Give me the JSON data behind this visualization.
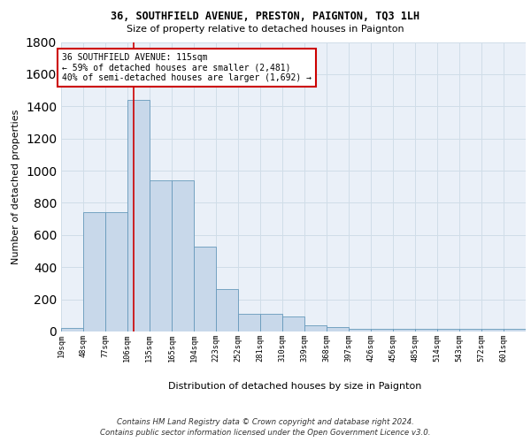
{
  "title1": "36, SOUTHFIELD AVENUE, PRESTON, PAIGNTON, TQ3 1LH",
  "title2": "Size of property relative to detached houses in Paignton",
  "xlabel": "Distribution of detached houses by size in Paignton",
  "ylabel": "Number of detached properties",
  "bin_labels": [
    "19sqm",
    "48sqm",
    "77sqm",
    "106sqm",
    "135sqm",
    "165sqm",
    "194sqm",
    "223sqm",
    "252sqm",
    "281sqm",
    "310sqm",
    "339sqm",
    "368sqm",
    "397sqm",
    "426sqm",
    "456sqm",
    "485sqm",
    "514sqm",
    "543sqm",
    "572sqm",
    "601sqm"
  ],
  "bin_edges": [
    19,
    48,
    77,
    106,
    135,
    165,
    194,
    223,
    252,
    281,
    310,
    339,
    368,
    397,
    426,
    456,
    485,
    514,
    543,
    572,
    601
  ],
  "bar_heights": [
    20,
    740,
    740,
    1440,
    940,
    940,
    530,
    265,
    110,
    110,
    95,
    40,
    25,
    15,
    15,
    15,
    15,
    15,
    15,
    15,
    15
  ],
  "bar_color": "#c8d8ea",
  "bar_edgecolor": "#6699bb",
  "property_size": 115,
  "vline_color": "#cc0000",
  "annotation_line1": "36 SOUTHFIELD AVENUE: 115sqm",
  "annotation_line2": "← 59% of detached houses are smaller (2,481)",
  "annotation_line3": "40% of semi-detached houses are larger (1,692) →",
  "annotation_box_edgecolor": "#cc0000",
  "ylim": [
    0,
    1800
  ],
  "yticks": [
    0,
    200,
    400,
    600,
    800,
    1000,
    1200,
    1400,
    1600,
    1800
  ],
  "grid_color": "#d0dde8",
  "footer_line1": "Contains HM Land Registry data © Crown copyright and database right 2024.",
  "footer_line2": "Contains public sector information licensed under the Open Government Licence v3.0.",
  "fig_facecolor": "#ffffff",
  "plot_facecolor": "#eaf0f8"
}
